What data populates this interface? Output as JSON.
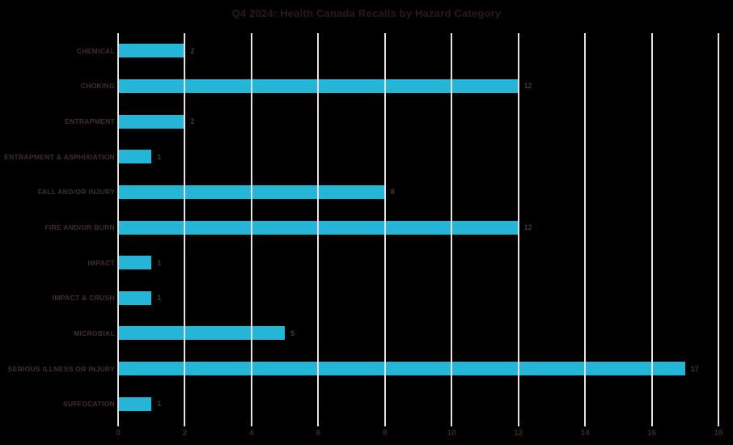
{
  "title": "Q4 2024: Health Canada Recalls by Hazard Category",
  "chart_data": {
    "type": "bar",
    "orientation": "horizontal",
    "title": "Q4 2024: Health Canada Recalls by Hazard Category",
    "categories": [
      "CHEMICAL",
      "CHOKING",
      "ENTRAPMENT",
      "ENTRAPMENT & ASPHIXIATION",
      "FALL AND/OR INJURY",
      "FIRE AND/OR BURN",
      "IMPACT",
      "IMPACT & CRUSH",
      "MICROBIAL",
      "SERIOUS ILLNESS OR INJURY",
      "SUFFOCATION"
    ],
    "values": [
      2,
      12,
      2,
      1,
      8,
      12,
      1,
      1,
      5,
      17,
      1
    ],
    "value_labels": [
      "2",
      "12",
      "2",
      "1",
      "8",
      "12",
      "1",
      "1",
      "5",
      "17",
      "1"
    ],
    "xlabel": "",
    "ylabel": "",
    "xlim": [
      0,
      18
    ],
    "xticks": [
      0,
      2,
      4,
      6,
      8,
      10,
      12,
      14,
      16,
      18
    ],
    "grid": true,
    "gridlines_over_bars": true,
    "legend": false
  },
  "colors": {
    "background": "#000000",
    "bar": "#25b5d6",
    "gridline": "#e9dfe7",
    "title_text": "#2a1823",
    "label_text": "#412d38",
    "value_text": "#4a3440",
    "tick_text": "#3a2530"
  }
}
